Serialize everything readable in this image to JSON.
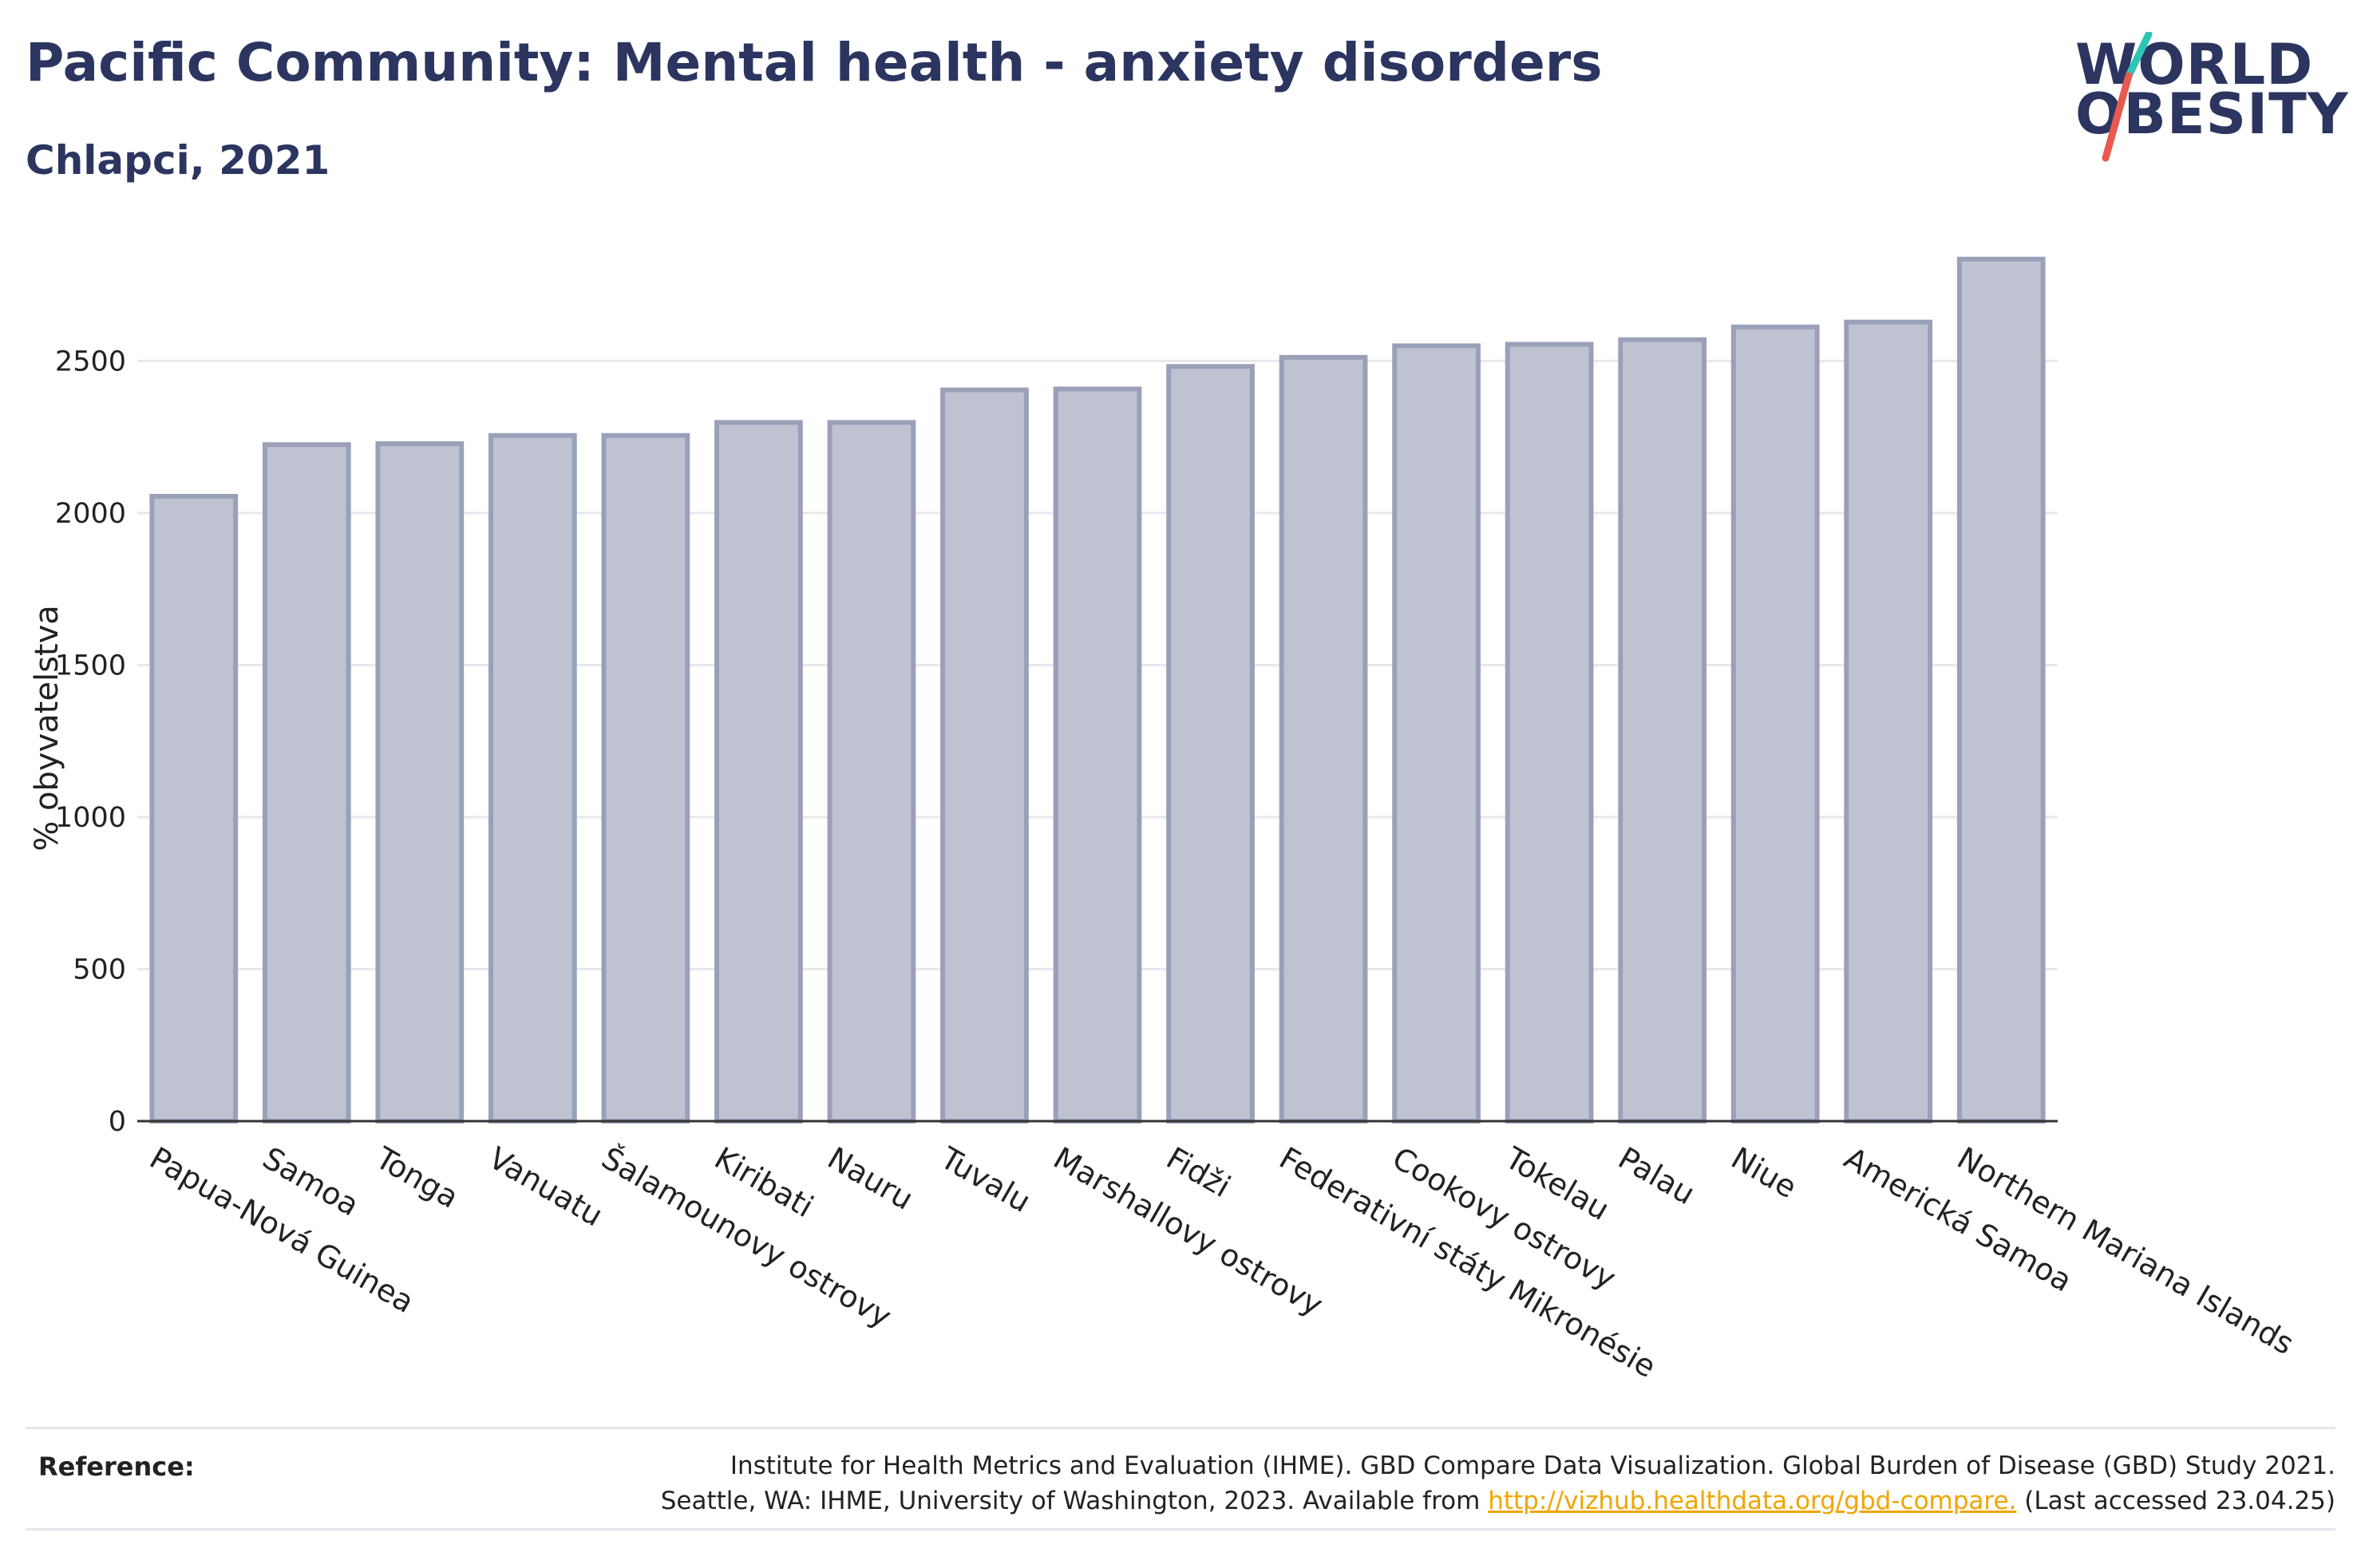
{
  "header": {
    "title": "Pacific Community: Mental health - anxiety disorders",
    "subtitle": "Chlapci, 2021"
  },
  "logo": {
    "line1": "WORLD",
    "line2": "OBESITY",
    "accent_teal": "#2ec4b6",
    "accent_red": "#e85a4f"
  },
  "colors": {
    "bar_fill": "#bfc3d1",
    "bar_stroke": "#9aa0b8",
    "text_primary": "#2c3560"
  },
  "chart_data": {
    "type": "bar",
    "title": "",
    "xlabel": "",
    "ylabel": "% obyvatelstva",
    "ylim": [
      0,
      2900
    ],
    "yticks": [
      0,
      500,
      1000,
      1500,
      2000,
      2500
    ],
    "grid": true,
    "categories": [
      "Papua-Nová Guinea",
      "Samoa",
      "Tonga",
      "Vanuatu",
      "Šalamounovy ostrovy",
      "Kiribati",
      "Nauru",
      "Tuvalu",
      "Marshallovy ostrovy",
      "Fidži",
      "Federativní státy Mikronésie",
      "Cookovy ostrovy",
      "Tokelau",
      "Palau",
      "Niue",
      "Americká Samoa",
      "Northern Mariana Islands"
    ],
    "values": [
      2055,
      2225,
      2228,
      2255,
      2255,
      2298,
      2298,
      2405,
      2408,
      2482,
      2512,
      2550,
      2555,
      2570,
      2612,
      2628,
      2835
    ]
  },
  "reference": {
    "label": "Reference:",
    "line1": "Institute for Health Metrics and Evaluation (IHME). GBD Compare Data Visualization. Global Burden of Disease (GBD) Study 2021.",
    "line2_prefix": "Seattle, WA: IHME, University of Washington, 2023. Available from ",
    "link_text": "http://vizhub.healthdata.org/gbd-compare.",
    "line2_suffix": " (Last accessed 23.04.25)"
  }
}
